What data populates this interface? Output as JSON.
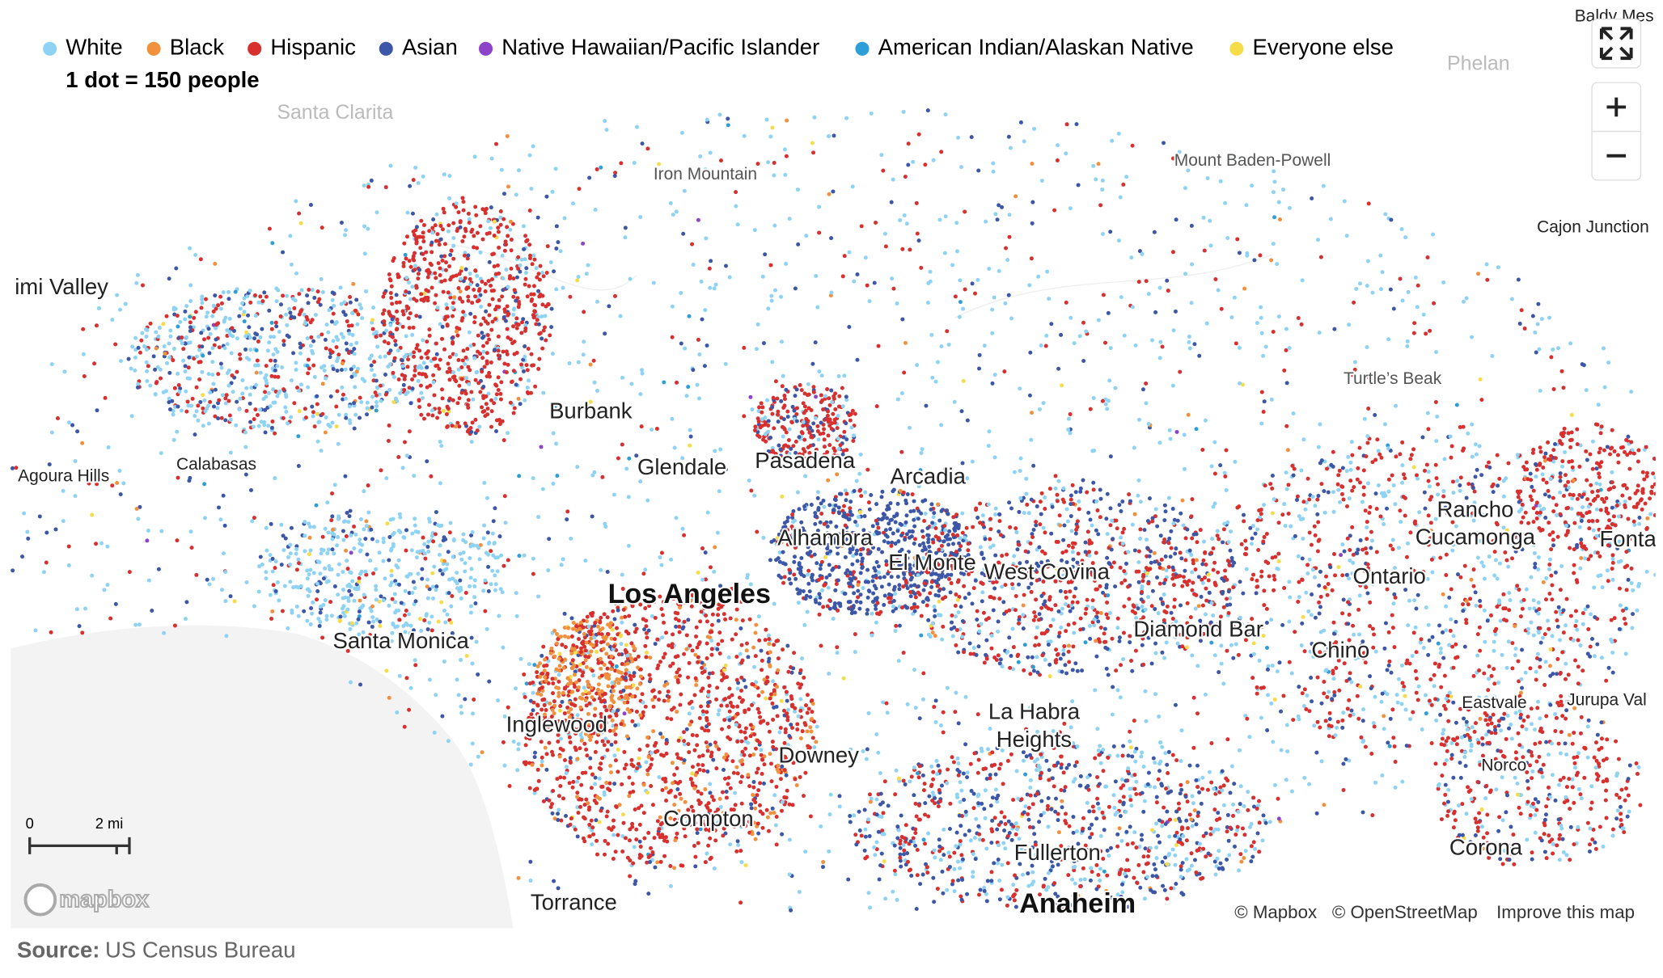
{
  "legend": {
    "items": [
      {
        "name": "White",
        "color": "#8fd3f4"
      },
      {
        "name": "Black",
        "color": "#f2913d"
      },
      {
        "name": "Hispanic",
        "color": "#d7302f"
      },
      {
        "name": "Asian",
        "color": "#3c56a8"
      },
      {
        "name": "Native Hawaiian/Pacific Islander",
        "color": "#8e44c9"
      },
      {
        "name": "American Indian/Alaskan Native",
        "color": "#2e9fd6"
      },
      {
        "name": "Everyone else",
        "color": "#f7dc4a"
      }
    ],
    "dot_note": "1 dot = 150 people"
  },
  "places": [
    {
      "label": "Baldy Mes",
      "kind": "minor"
    },
    {
      "label": "Phelan",
      "kind": "faint"
    },
    {
      "label": "Santa Clarita",
      "kind": "faint"
    },
    {
      "label": "Iron Mountain",
      "kind": "peak"
    },
    {
      "label": "Mount Baden-Powell",
      "kind": "peak"
    },
    {
      "label": "Cajon Junction",
      "kind": "minor"
    },
    {
      "label": "imi Valley",
      "kind": "city"
    },
    {
      "label": "Turtle’s Beak",
      "kind": "peak"
    },
    {
      "label": "Burbank",
      "kind": "city"
    },
    {
      "label": "Agoura Hills",
      "kind": "minor"
    },
    {
      "label": "Calabasas",
      "kind": "minor"
    },
    {
      "label": "Glendale",
      "kind": "city"
    },
    {
      "label": "Pasadena",
      "kind": "city"
    },
    {
      "label": "Arcadia",
      "kind": "city"
    },
    {
      "label": "Rancho",
      "kind": "city"
    },
    {
      "label": "Cucamonga",
      "kind": "city"
    },
    {
      "label": "Fonta",
      "kind": "city"
    },
    {
      "label": "Alhambra",
      "kind": "city"
    },
    {
      "label": "El Monte",
      "kind": "city"
    },
    {
      "label": "West Covina",
      "kind": "city"
    },
    {
      "label": "Ontario",
      "kind": "city"
    },
    {
      "label": "Los Angeles",
      "kind": "major"
    },
    {
      "label": "Santa Monica",
      "kind": "city"
    },
    {
      "label": "Diamond Bar",
      "kind": "city"
    },
    {
      "label": "Chino",
      "kind": "city"
    },
    {
      "label": "Eastvale",
      "kind": "minor"
    },
    {
      "label": "Jurupa Val",
      "kind": "minor"
    },
    {
      "label": "La Habra",
      "kind": "city"
    },
    {
      "label": "Heights",
      "kind": "city"
    },
    {
      "label": "Inglewood",
      "kind": "city"
    },
    {
      "label": "Downey",
      "kind": "city"
    },
    {
      "label": "Norco",
      "kind": "minor"
    },
    {
      "label": "Compton",
      "kind": "city"
    },
    {
      "label": "Fullerton",
      "kind": "city"
    },
    {
      "label": "Corona",
      "kind": "city"
    },
    {
      "label": "Torrance",
      "kind": "city"
    },
    {
      "label": "Anaheim",
      "kind": "major"
    }
  ],
  "scale": {
    "start": "0",
    "end": "2 mi"
  },
  "logo": "mapbox",
  "attribution": [
    "© Mapbox",
    "© OpenStreetMap",
    "Improve this map"
  ],
  "source": {
    "label": "Source:",
    "text": "US Census Bureau"
  }
}
